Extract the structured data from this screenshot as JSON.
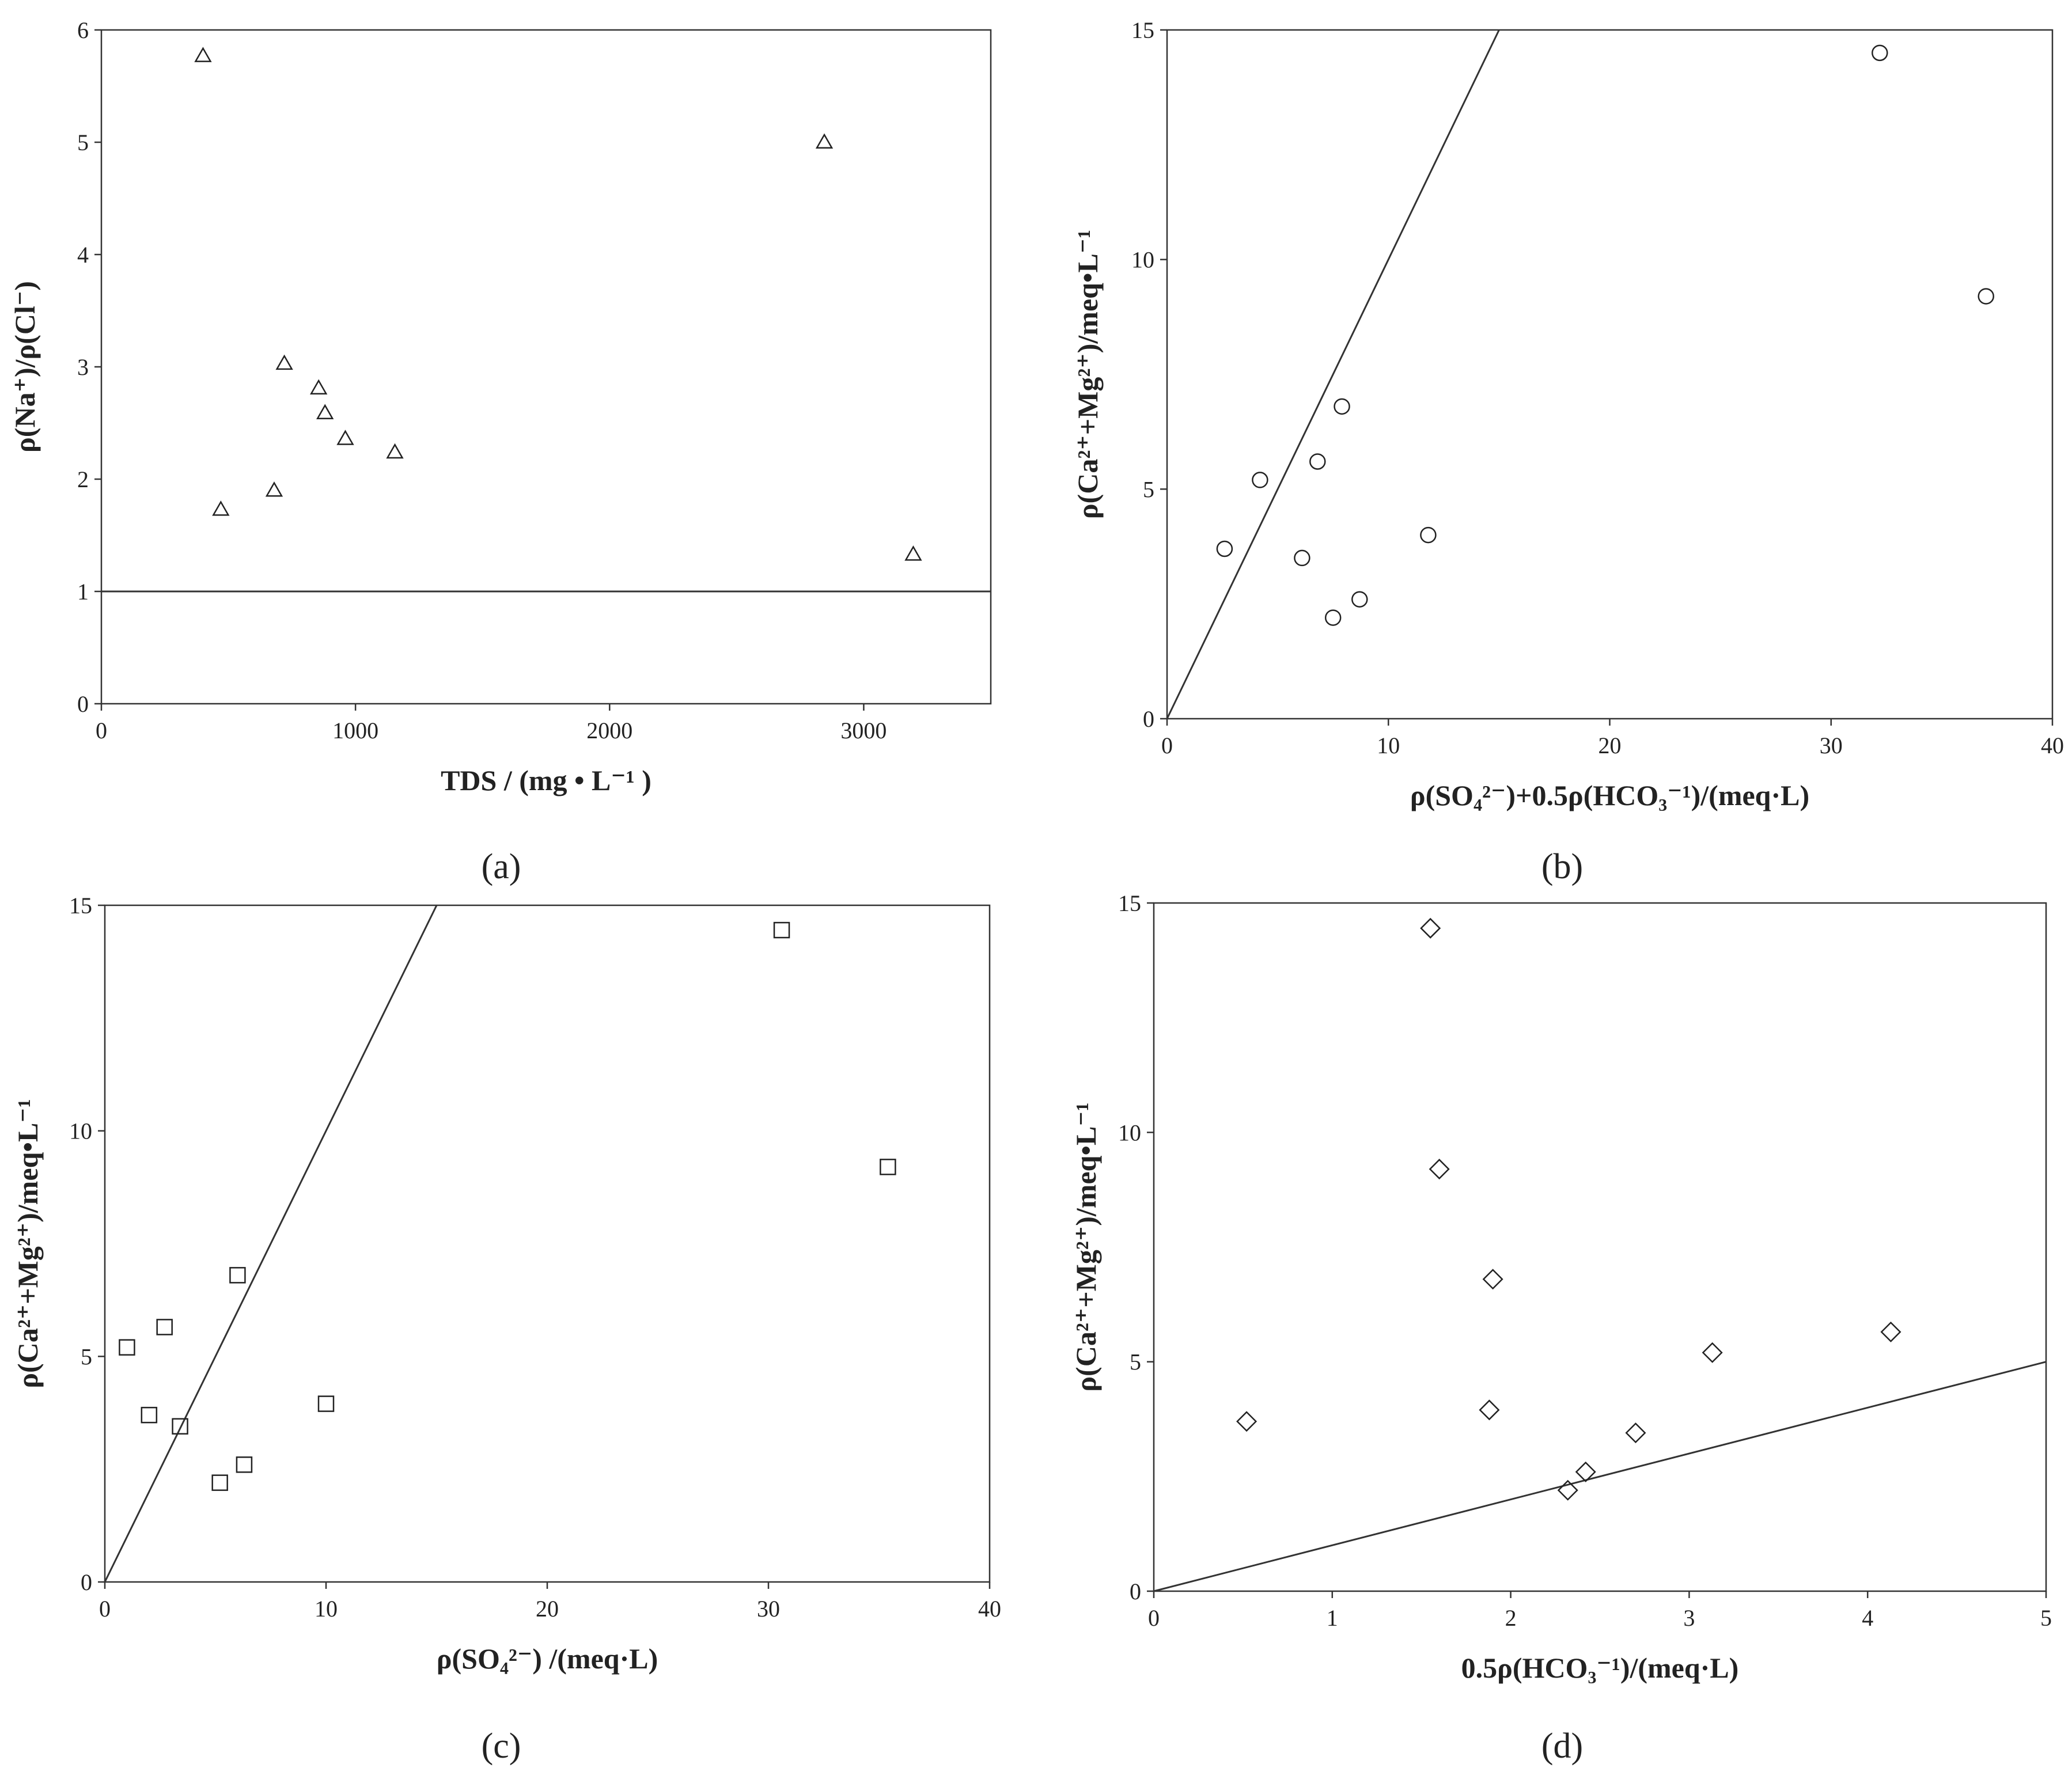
{
  "chart_data": [
    {
      "type": "scatter",
      "panel_label": "(a)",
      "marker": "triangle",
      "xlabel": "TDS / (mg • L⁻¹ )",
      "ylabel": "ρ(Na⁺)/ρ(Cl⁻)",
      "xlim": [
        0,
        3500
      ],
      "ylim": [
        0,
        6
      ],
      "xticks": [
        "0",
        "1000",
        "2000",
        "3000"
      ],
      "yticks": [
        "0",
        "1",
        "2",
        "3",
        "4",
        "5",
        "6"
      ],
      "reference_line": {
        "x": [
          0,
          3500
        ],
        "y": [
          1,
          1
        ]
      },
      "points": [
        {
          "x": 400,
          "y": 5.77
        },
        {
          "x": 470,
          "y": 1.73
        },
        {
          "x": 680,
          "y": 1.9
        },
        {
          "x": 720,
          "y": 3.03
        },
        {
          "x": 855,
          "y": 2.81
        },
        {
          "x": 880,
          "y": 2.59
        },
        {
          "x": 960,
          "y": 2.36
        },
        {
          "x": 1155,
          "y": 2.24
        },
        {
          "x": 2845,
          "y": 5.0
        },
        {
          "x": 3195,
          "y": 1.33
        }
      ]
    },
    {
      "type": "scatter",
      "panel_label": "(b)",
      "marker": "circle",
      "xlabel": "ρ(SO₄²⁻)+0.5ρ(HCO₃⁻¹)/(meq·L)",
      "ylabel": "ρ(Ca²⁺+Mg²⁺)/meq•L⁻¹",
      "xlim": [
        0,
        40
      ],
      "ylim": [
        0,
        15
      ],
      "xticks": [
        "0",
        "10",
        "20",
        "30",
        "40"
      ],
      "yticks": [
        "0",
        "5",
        "10",
        "15"
      ],
      "reference_line": {
        "x": [
          0,
          15
        ],
        "y": [
          0,
          15
        ]
      },
      "points": [
        {
          "x": 2.6,
          "y": 3.7
        },
        {
          "x": 4.2,
          "y": 5.2
        },
        {
          "x": 6.1,
          "y": 3.5
        },
        {
          "x": 6.8,
          "y": 5.6
        },
        {
          "x": 7.5,
          "y": 2.2
        },
        {
          "x": 7.9,
          "y": 6.8
        },
        {
          "x": 8.7,
          "y": 2.6
        },
        {
          "x": 11.8,
          "y": 4.0
        },
        {
          "x": 32.2,
          "y": 14.5
        },
        {
          "x": 37.0,
          "y": 9.2
        }
      ]
    },
    {
      "type": "scatter",
      "panel_label": "(c)",
      "marker": "square",
      "xlabel": "ρ(SO₄²⁻) /(meq·L)",
      "ylabel": "ρ(Ca²⁺+Mg²⁺)/meq•L⁻¹",
      "xlim": [
        0,
        40
      ],
      "ylim": [
        0,
        15
      ],
      "xticks": [
        "0",
        "10",
        "20",
        "30",
        "40"
      ],
      "yticks": [
        "0",
        "5",
        "10",
        "15"
      ],
      "reference_line": {
        "x": [
          0,
          15
        ],
        "y": [
          0,
          15
        ]
      },
      "points": [
        {
          "x": 1.0,
          "y": 5.2
        },
        {
          "x": 2.0,
          "y": 3.7
        },
        {
          "x": 2.7,
          "y": 5.65
        },
        {
          "x": 3.4,
          "y": 3.45
        },
        {
          "x": 5.2,
          "y": 2.2
        },
        {
          "x": 6.0,
          "y": 6.8
        },
        {
          "x": 6.3,
          "y": 2.6
        },
        {
          "x": 10.0,
          "y": 3.95
        },
        {
          "x": 30.6,
          "y": 14.45
        },
        {
          "x": 35.4,
          "y": 9.2
        }
      ]
    },
    {
      "type": "scatter",
      "panel_label": "(d)",
      "marker": "diamond",
      "xlabel": "0.5ρ(HCO₃⁻¹)/(meq·L)",
      "ylabel": "ρ(Ca²⁺+Mg²⁺)/meq•L⁻¹",
      "xlim": [
        0,
        5
      ],
      "ylim": [
        0,
        15
      ],
      "xticks": [
        "0",
        "1",
        "2",
        "3",
        "4",
        "5"
      ],
      "yticks": [
        "0",
        "5",
        "10",
        "15"
      ],
      "reference_line": {
        "x": [
          0,
          5
        ],
        "y": [
          0,
          5
        ]
      },
      "points": [
        {
          "x": 0.52,
          "y": 3.7
        },
        {
          "x": 1.55,
          "y": 14.45
        },
        {
          "x": 1.6,
          "y": 9.2
        },
        {
          "x": 1.88,
          "y": 3.95
        },
        {
          "x": 1.9,
          "y": 6.8
        },
        {
          "x": 2.32,
          "y": 2.2
        },
        {
          "x": 2.42,
          "y": 2.6
        },
        {
          "x": 2.7,
          "y": 3.45
        },
        {
          "x": 3.13,
          "y": 5.2
        },
        {
          "x": 4.13,
          "y": 5.65
        }
      ]
    }
  ]
}
